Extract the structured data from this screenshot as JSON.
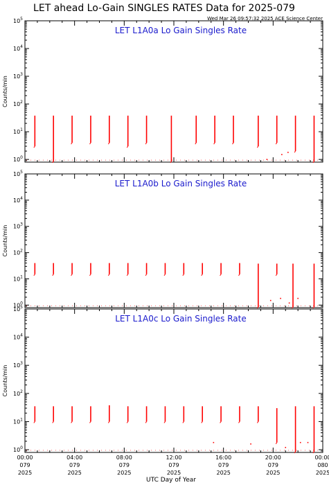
{
  "header": {
    "title": "LET ahead Lo-Gain SINGLES RATES Data for 2025-079",
    "timestamp": "Wed Mar 26 09:57:32 2025 ACE Science Center"
  },
  "chart_data": [
    {
      "type": "line",
      "title": "LET L1A0a Lo Gain Singles Rate",
      "xlabel": "UTC Day of Year",
      "ylabel": "Counts/min",
      "yscale": "log",
      "ylim": [
        0.8,
        100000
      ],
      "xlim_hours": [
        0,
        24
      ],
      "colors": {
        "series": "#ff0000",
        "title": "#1a1acc"
      },
      "x_ticks": [
        [
          "00:00",
          "079",
          "2025"
        ],
        [
          "04:00",
          "079",
          "2025"
        ],
        [
          "08:00",
          "079",
          "2025"
        ],
        [
          "12:00",
          "079",
          "2025"
        ],
        [
          "16:00",
          "079",
          "2025"
        ],
        [
          "20:00",
          "079",
          "2025"
        ],
        [
          "00:00",
          "080",
          "2025"
        ]
      ],
      "series": [
        {
          "spikes": [
            {
              "t": 0.8,
              "top": 38,
              "bottom": 3
            },
            {
              "t": 2.3,
              "top": 38,
              "bottom": 0.85
            },
            {
              "t": 3.8,
              "top": 38,
              "bottom": 4
            },
            {
              "t": 5.3,
              "top": 38,
              "bottom": 4
            },
            {
              "t": 6.8,
              "top": 38,
              "bottom": 4
            },
            {
              "t": 8.3,
              "top": 38,
              "bottom": 3
            },
            {
              "t": 9.8,
              "top": 38,
              "bottom": 4
            },
            {
              "t": 11.8,
              "top": 38,
              "bottom": 0.85
            },
            {
              "t": 13.8,
              "top": 38,
              "bottom": 4
            },
            {
              "t": 15.3,
              "top": 38,
              "bottom": 4
            },
            {
              "t": 16.8,
              "top": 38,
              "bottom": 4
            },
            {
              "t": 18.8,
              "top": 38,
              "bottom": 3
            },
            {
              "t": 20.3,
              "top": 38,
              "bottom": 4
            },
            {
              "t": 21.8,
              "top": 38,
              "bottom": 2
            },
            {
              "t": 23.3,
              "top": 38,
              "bottom": 0.85
            }
          ],
          "dots": [
            [
              19.5,
              1
            ],
            [
              20.7,
              1.5
            ],
            [
              21.2,
              1.8
            ]
          ]
        }
      ]
    },
    {
      "type": "line",
      "title": "LET L1A0b Lo Gain Singles Rate",
      "xlabel": "UTC Day of Year",
      "ylabel": "Counts/min",
      "yscale": "log",
      "ylim": [
        0.8,
        100000
      ],
      "xlim_hours": [
        0,
        24
      ],
      "colors": {
        "series": "#ff0000",
        "title": "#1a1acc"
      },
      "x_ticks": [
        [
          "00:00",
          "079",
          "2025"
        ],
        [
          "04:00",
          "079",
          "2025"
        ],
        [
          "08:00",
          "079",
          "2025"
        ],
        [
          "12:00",
          "079",
          "2025"
        ],
        [
          "16:00",
          "079",
          "2025"
        ],
        [
          "20:00",
          "079",
          "2025"
        ],
        [
          "00:00",
          "080",
          "2025"
        ]
      ],
      "series": [
        {
          "spikes": [
            {
              "t": 0.8,
              "top": 40,
              "bottom": 15
            },
            {
              "t": 2.3,
              "top": 40,
              "bottom": 15
            },
            {
              "t": 3.8,
              "top": 40,
              "bottom": 15
            },
            {
              "t": 5.3,
              "top": 40,
              "bottom": 15
            },
            {
              "t": 6.8,
              "top": 40,
              "bottom": 15
            },
            {
              "t": 8.3,
              "top": 40,
              "bottom": 15
            },
            {
              "t": 9.8,
              "top": 40,
              "bottom": 15
            },
            {
              "t": 11.3,
              "top": 40,
              "bottom": 15
            },
            {
              "t": 12.8,
              "top": 40,
              "bottom": 15
            },
            {
              "t": 14.3,
              "top": 40,
              "bottom": 15
            },
            {
              "t": 15.8,
              "top": 40,
              "bottom": 15
            },
            {
              "t": 17.3,
              "top": 40,
              "bottom": 15
            },
            {
              "t": 18.8,
              "top": 38,
              "bottom": 0.85
            },
            {
              "t": 20.3,
              "top": 38,
              "bottom": 15
            },
            {
              "t": 21.6,
              "top": 38,
              "bottom": 0.85
            },
            {
              "t": 23.3,
              "top": 38,
              "bottom": 0.85
            }
          ],
          "dots": [
            [
              19.8,
              1.5
            ],
            [
              20.6,
              1.8
            ],
            [
              21.3,
              1.2
            ],
            [
              22.0,
              1.8
            ]
          ]
        }
      ]
    },
    {
      "type": "line",
      "title": "LET L1A0c Lo Gain Singles Rate",
      "xlabel": "UTC Day of Year",
      "ylabel": "Counts/min",
      "yscale": "log",
      "ylim": [
        0.8,
        100000
      ],
      "xlim_hours": [
        0,
        24
      ],
      "colors": {
        "series": "#ff0000",
        "title": "#1a1acc"
      },
      "x_ticks": [
        [
          "00:00",
          "079",
          "2025"
        ],
        [
          "04:00",
          "079",
          "2025"
        ],
        [
          "08:00",
          "079",
          "2025"
        ],
        [
          "12:00",
          "079",
          "2025"
        ],
        [
          "16:00",
          "079",
          "2025"
        ],
        [
          "20:00",
          "079",
          "2025"
        ],
        [
          "00:00",
          "080",
          "2025"
        ]
      ],
      "series": [
        {
          "spikes": [
            {
              "t": 0.8,
              "top": 35,
              "bottom": 10
            },
            {
              "t": 2.3,
              "top": 35,
              "bottom": 10
            },
            {
              "t": 3.8,
              "top": 35,
              "bottom": 10
            },
            {
              "t": 5.3,
              "top": 35,
              "bottom": 10
            },
            {
              "t": 6.8,
              "top": 38,
              "bottom": 10
            },
            {
              "t": 8.3,
              "top": 35,
              "bottom": 10
            },
            {
              "t": 9.8,
              "top": 35,
              "bottom": 10
            },
            {
              "t": 11.3,
              "top": 35,
              "bottom": 10
            },
            {
              "t": 12.8,
              "top": 35,
              "bottom": 10
            },
            {
              "t": 14.3,
              "top": 35,
              "bottom": 10
            },
            {
              "t": 15.8,
              "top": 35,
              "bottom": 10
            },
            {
              "t": 17.3,
              "top": 35,
              "bottom": 10
            },
            {
              "t": 18.8,
              "top": 35,
              "bottom": 10
            },
            {
              "t": 20.3,
              "top": 30,
              "bottom": 1.8
            },
            {
              "t": 21.8,
              "top": 35,
              "bottom": 0.85
            },
            {
              "t": 23.3,
              "top": 35,
              "bottom": 0.85
            }
          ],
          "dots": [
            [
              15.2,
              1.8
            ],
            [
              18.2,
              1.6
            ],
            [
              21.0,
              1.2
            ],
            [
              22.2,
              1.8
            ],
            [
              22.8,
              1.8
            ]
          ]
        }
      ]
    }
  ]
}
